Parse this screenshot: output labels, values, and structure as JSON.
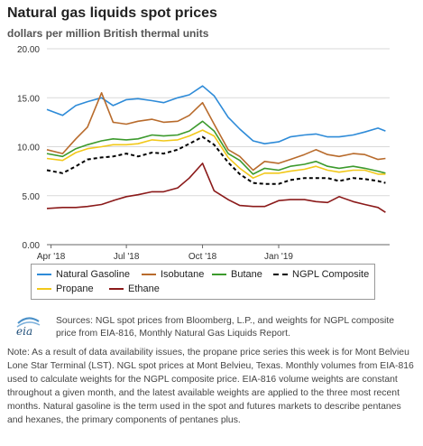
{
  "title": "Natural gas liquids spot prices",
  "subtitle": "dollars per million British thermal units",
  "legend": {
    "natural_gasoline": "Natural Gasoline",
    "isobutane": "Isobutane",
    "butane": "Butane",
    "ngpl": "NGPL Composite",
    "propane": "Propane",
    "ethane": "Ethane"
  },
  "eia_logo": "eia",
  "sources": "Sources: NGL spot prices from Bloomberg, L.P., and weights for NGPL composite price from EIA-816, Monthly Natural Gas Liquids Report.",
  "note": "Note: As a result of data availability issues, the propane price series this week is for Mont Belvieu Lone Star Terminal (LST). NGL spot prices at Mont Belvieu, Texas. Monthly volumes from EIA-816 used to calculate weights for the NGPL composite price. EIA-816 volume weights are constant throughout a given month, and the latest available weights are applied to the three most recent months. Natural gasoline is the term used in the spot and futures markets to describe pentanes and hexanes, the primary components of pentanes plus.",
  "colors": {
    "natural_gasoline": "#2e8bd8",
    "isobutane": "#b86b2c",
    "butane": "#3c9a2d",
    "ngpl": "#000000",
    "propane": "#f2c81a",
    "ethane": "#8b1a1a"
  },
  "chart_data": {
    "type": "line",
    "title": "Natural gas liquids spot prices",
    "ylabel": "dollars per million British thermal units",
    "ylim": [
      0,
      20
    ],
    "yticks": [
      "0.00",
      "5.00",
      "10.00",
      "15.00",
      "20.00"
    ],
    "xlim": [
      "2018-03-27",
      "2019-05-15"
    ],
    "xticks": [
      {
        "label": "Apr '18",
        "date": "2018-04-01"
      },
      {
        "label": "Jul '18",
        "date": "2018-07-01"
      },
      {
        "label": "Oct '18",
        "date": "2018-10-01"
      },
      {
        "label": "Jan '19",
        "date": "2019-01-01"
      }
    ],
    "grid": true,
    "legend_position": "bottom",
    "x": [
      "2018-03-27",
      "2018-04-15",
      "2018-05-01",
      "2018-05-15",
      "2018-06-01",
      "2018-06-15",
      "2018-07-01",
      "2018-07-15",
      "2018-08-01",
      "2018-08-15",
      "2018-09-01",
      "2018-09-15",
      "2018-10-01",
      "2018-10-15",
      "2018-11-01",
      "2018-11-15",
      "2018-12-01",
      "2018-12-15",
      "2019-01-01",
      "2019-01-15",
      "2019-02-01",
      "2019-02-15",
      "2019-03-01",
      "2019-03-15",
      "2019-04-01",
      "2019-04-15",
      "2019-05-01",
      "2019-05-10"
    ],
    "series": [
      {
        "name": "Natural Gasoline",
        "values": [
          13.8,
          13.2,
          14.2,
          14.6,
          15.0,
          14.2,
          14.8,
          14.9,
          14.7,
          14.5,
          15.0,
          15.3,
          16.2,
          15.2,
          13.0,
          11.8,
          10.6,
          10.3,
          10.5,
          11.0,
          11.2,
          11.3,
          11.0,
          11.0,
          11.2,
          11.5,
          11.9,
          11.6
        ]
      },
      {
        "name": "Isobutane",
        "values": [
          9.7,
          9.3,
          10.8,
          12.0,
          15.5,
          12.5,
          12.3,
          12.6,
          12.8,
          12.5,
          12.6,
          13.2,
          14.5,
          12.3,
          9.7,
          9.0,
          7.6,
          8.5,
          8.3,
          8.7,
          9.2,
          9.7,
          9.2,
          9.0,
          9.3,
          9.2,
          8.7,
          8.8
        ]
      },
      {
        "name": "Butane",
        "values": [
          9.3,
          9.0,
          9.8,
          10.2,
          10.6,
          10.8,
          10.7,
          10.8,
          11.2,
          11.1,
          11.2,
          11.6,
          12.6,
          11.6,
          9.3,
          8.6,
          7.2,
          7.8,
          7.6,
          8.0,
          8.2,
          8.5,
          8.0,
          7.8,
          8.0,
          7.8,
          7.5,
          7.3
        ]
      },
      {
        "name": "NGPL Composite",
        "values": [
          7.6,
          7.3,
          8.0,
          8.7,
          8.9,
          9.0,
          9.3,
          9.0,
          9.4,
          9.3,
          9.7,
          10.3,
          11.0,
          10.2,
          8.4,
          7.2,
          6.3,
          6.2,
          6.2,
          6.6,
          6.8,
          6.8,
          6.8,
          6.5,
          6.8,
          6.7,
          6.5,
          6.3
        ]
      },
      {
        "name": "Propane",
        "values": [
          8.8,
          8.6,
          9.4,
          9.8,
          10.0,
          10.2,
          10.2,
          10.3,
          10.7,
          10.6,
          10.7,
          11.1,
          11.7,
          11.1,
          8.9,
          7.8,
          6.8,
          7.3,
          7.3,
          7.5,
          7.7,
          8.0,
          7.6,
          7.4,
          7.6,
          7.6,
          7.2,
          7.2
        ]
      },
      {
        "name": "Ethane",
        "values": [
          3.7,
          3.8,
          3.8,
          3.9,
          4.1,
          4.5,
          4.9,
          5.1,
          5.4,
          5.4,
          5.8,
          6.8,
          8.3,
          5.5,
          4.6,
          4.0,
          3.9,
          3.9,
          4.5,
          4.6,
          4.6,
          4.4,
          4.3,
          4.9,
          4.4,
          4.1,
          3.8,
          3.3
        ]
      }
    ]
  }
}
